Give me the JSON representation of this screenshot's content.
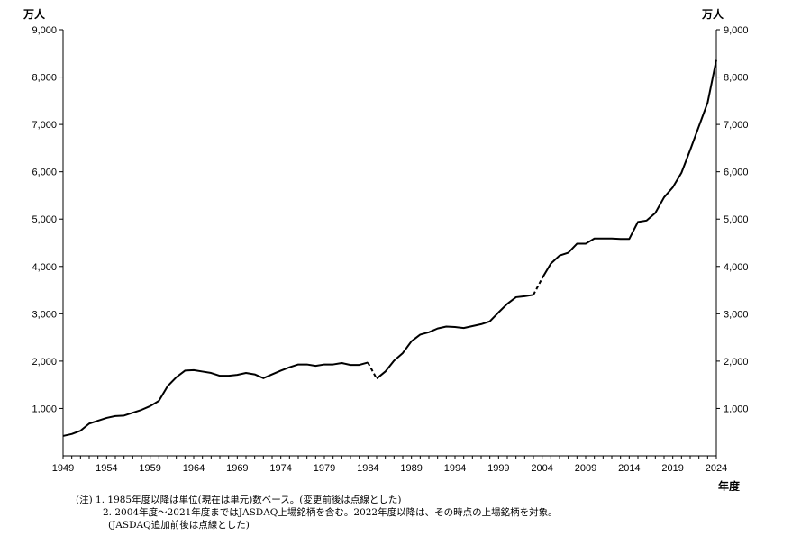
{
  "chart_data": {
    "type": "line",
    "title": "",
    "y_unit_left": "万人",
    "y_unit_right": "万人",
    "xlabel": "年度",
    "ylabel": "",
    "ylim": [
      0,
      9000
    ],
    "xlim": [
      1949,
      2024
    ],
    "y_ticks": [
      "1,000",
      "2,000",
      "3,000",
      "4,000",
      "5,000",
      "6,000",
      "7,000",
      "8,000",
      "9,000"
    ],
    "x_ticks": [
      "1949",
      "1954",
      "1959",
      "1964",
      "1969",
      "1974",
      "1979",
      "1984",
      "1989",
      "1994",
      "1999",
      "2004",
      "2009",
      "2014",
      "2019",
      "2024"
    ],
    "series": [
      {
        "segments": [
          {
            "style": "solid",
            "points": [
              [
                1949,
                420
              ],
              [
                1950,
                460
              ],
              [
                1951,
                530
              ],
              [
                1952,
                680
              ],
              [
                1953,
                740
              ],
              [
                1954,
                800
              ],
              [
                1955,
                840
              ],
              [
                1956,
                850
              ],
              [
                1957,
                910
              ],
              [
                1958,
                970
              ],
              [
                1959,
                1050
              ],
              [
                1960,
                1160
              ],
              [
                1961,
                1470
              ],
              [
                1962,
                1660
              ],
              [
                1963,
                1800
              ],
              [
                1964,
                1810
              ],
              [
                1965,
                1780
              ],
              [
                1966,
                1750
              ],
              [
                1967,
                1690
              ],
              [
                1968,
                1690
              ],
              [
                1969,
                1710
              ],
              [
                1970,
                1750
              ],
              [
                1971,
                1720
              ],
              [
                1972,
                1640
              ],
              [
                1973,
                1720
              ],
              [
                1974,
                1800
              ],
              [
                1975,
                1870
              ],
              [
                1976,
                1930
              ],
              [
                1977,
                1930
              ],
              [
                1978,
                1900
              ],
              [
                1979,
                1930
              ],
              [
                1980,
                1930
              ],
              [
                1981,
                1960
              ],
              [
                1982,
                1920
              ],
              [
                1983,
                1920
              ],
              [
                1984,
                1970
              ]
            ]
          },
          {
            "style": "dashed",
            "points": [
              [
                1984,
                1970
              ],
              [
                1985,
                1630
              ]
            ]
          },
          {
            "style": "solid",
            "points": [
              [
                1985,
                1630
              ],
              [
                1986,
                1780
              ],
              [
                1987,
                2010
              ],
              [
                1988,
                2170
              ],
              [
                1989,
                2420
              ],
              [
                1990,
                2560
              ],
              [
                1991,
                2610
              ],
              [
                1992,
                2690
              ],
              [
                1993,
                2730
              ],
              [
                1994,
                2720
              ],
              [
                1995,
                2700
              ],
              [
                1996,
                2740
              ],
              [
                1997,
                2780
              ],
              [
                1998,
                2840
              ],
              [
                1999,
                3030
              ],
              [
                2000,
                3210
              ],
              [
                2001,
                3350
              ],
              [
                2002,
                3370
              ],
              [
                2003,
                3400
              ]
            ]
          },
          {
            "style": "dashed",
            "points": [
              [
                2003,
                3400
              ],
              [
                2004,
                3750
              ]
            ]
          },
          {
            "style": "solid",
            "points": [
              [
                2004,
                3750
              ],
              [
                2005,
                4060
              ],
              [
                2006,
                4230
              ],
              [
                2007,
                4290
              ],
              [
                2008,
                4480
              ],
              [
                2009,
                4480
              ],
              [
                2010,
                4590
              ],
              [
                2011,
                4590
              ],
              [
                2012,
                4590
              ],
              [
                2013,
                4580
              ],
              [
                2014,
                4580
              ],
              [
                2015,
                4940
              ],
              [
                2016,
                4970
              ],
              [
                2017,
                5130
              ],
              [
                2018,
                5460
              ],
              [
                2019,
                5670
              ],
              [
                2020,
                5980
              ],
              [
                2021,
                6460
              ],
              [
                2022,
                6960
              ],
              [
                2023,
                7460
              ],
              [
                2024,
                8360
              ]
            ]
          }
        ]
      }
    ]
  },
  "notes": {
    "line1": "(注) 1. 1985年度以降は単位(現在は単元)数ベース。(変更前後は点線とした)",
    "line2": "2. 2004年度～2021年度まではJASDAQ上場銘柄を含む。2022年度以降は、その時点の上場銘柄を対象。",
    "line3": "(JASDAQ追加前後は点線とした)"
  }
}
